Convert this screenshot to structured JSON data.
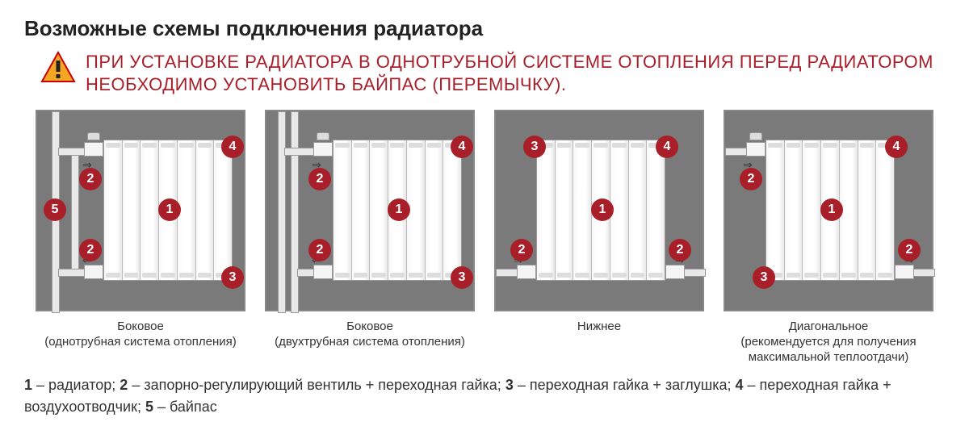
{
  "title": "Возможные схемы подключения радиатора",
  "warning": "ПРИ УСТАНОВКЕ РАДИАТОРА В ОДНОТРУБНОЙ СИСТЕМЕ ОТОПЛЕНИЯ ПЕРЕД РАДИАТОРОМ НЕОБХОДИМО УСТАНОВИТЬ БАЙПАС (ПЕРЕМЫЧКУ).",
  "colors": {
    "accent": "#a81f2a",
    "box_bg": "#7a7a7a",
    "text": "#333333",
    "warn_triangle_fill": "#f5a623",
    "warn_triangle_stroke": "#c00"
  },
  "schemes": [
    {
      "caption": "Боковое\n(однотрубная система отопления)"
    },
    {
      "caption": "Боковое\n(двухтрубная система отопления)"
    },
    {
      "caption": "Нижнее"
    },
    {
      "caption": "Диагональное\n(рекомендуется для получения максимальной теплоотдачи)"
    }
  ],
  "badges": {
    "b1": "1",
    "b2": "2",
    "b3": "3",
    "b4": "4",
    "b5": "5"
  },
  "legend_parts": {
    "p1": "1",
    "t1": " – радиатор; ",
    "p2": "2",
    "t2": " – запорно-регулирующий вентиль + переходная гайка; ",
    "p3": "3",
    "t3": " – переходная гайка + заглушка; ",
    "p4": "4",
    "t4": " – переходная гайка + воздухоотводчик; ",
    "p5": "5",
    "t5": " – байпас"
  }
}
